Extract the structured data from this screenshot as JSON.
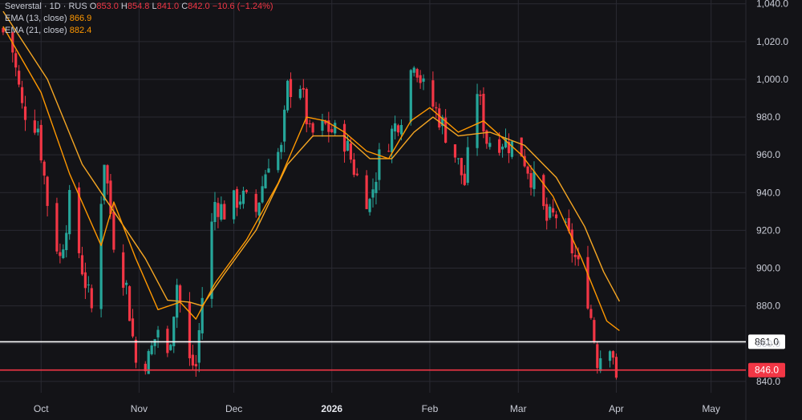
{
  "legend": {
    "symbol": "Severstal · 1D · RUS",
    "o_label": "O",
    "o_value": "853.0",
    "h_label": "H",
    "h_value": "854.8",
    "l_label": "L",
    "l_value": "841.0",
    "c_label": "C",
    "c_value": "842.0",
    "change": "−10.6 (−1.24%)",
    "ema1_label": "EMA (13, close)",
    "ema1_value": "866.9",
    "ema2_label": "EMA (21, close)",
    "ema2_value": "882.4"
  },
  "colors": {
    "up": "#26a69a",
    "down": "#f23645",
    "ema13": "#ff9800",
    "ema21": "#f5a623",
    "background": "#131317",
    "grid": "#2a2a32",
    "white_line": "#ffffff",
    "red_line": "#f23645"
  },
  "chart_data": {
    "type": "candlestick",
    "ylim": [
      834,
      1042
    ],
    "y_ticks": [
      "840.0",
      "860.0",
      "880.0",
      "900.0",
      "920.0",
      "940.0",
      "960.0",
      "980.0",
      "1,000.0",
      "1,020.0",
      "1,040.0"
    ],
    "y_tick_values": [
      840,
      860,
      880,
      900,
      920,
      940,
      960,
      980,
      1000,
      1020,
      1040
    ],
    "x_ticks": [
      {
        "label": "Oct",
        "date": "2025-10-01"
      },
      {
        "label": "Nov",
        "date": "2025-11-01"
      },
      {
        "label": "Dec",
        "date": "2025-12-01"
      },
      {
        "label": "2026",
        "date": "2026-01-01",
        "bold": true
      },
      {
        "label": "Feb",
        "date": "2026-02-01"
      },
      {
        "label": "Mar",
        "date": "2026-03-01"
      },
      {
        "label": "Apr",
        "date": "2026-04-01"
      },
      {
        "label": "May",
        "date": "2026-05-01"
      }
    ],
    "x_range": [
      "2025-09-18",
      "2026-05-12"
    ],
    "horizontal_lines": [
      {
        "value": 861.0,
        "label": "861.0",
        "color": "#ffffff"
      },
      {
        "value": 846.0,
        "label": "846.0",
        "color": "#f23645"
      }
    ],
    "close_path": [
      [
        "2025-09-19",
        1025
      ],
      [
        "2025-09-22",
        1015
      ],
      [
        "2025-09-25",
        985
      ],
      [
        "2025-09-30",
        975
      ],
      [
        "2025-10-03",
        935
      ],
      [
        "2025-10-07",
        905
      ],
      [
        "2025-10-10",
        935
      ],
      [
        "2025-10-14",
        900
      ],
      [
        "2025-10-17",
        878
      ],
      [
        "2025-10-21",
        958
      ],
      [
        "2025-10-24",
        915
      ],
      [
        "2025-10-28",
        890
      ],
      [
        "2025-10-31",
        850
      ],
      [
        "2025-11-04",
        852
      ],
      [
        "2025-11-07",
        868
      ],
      [
        "2025-11-10",
        852
      ],
      [
        "2025-11-13",
        892
      ],
      [
        "2025-11-17",
        850
      ],
      [
        "2025-11-19",
        848
      ],
      [
        "2025-11-21",
        885
      ],
      [
        "2025-11-25",
        935
      ],
      [
        "2025-11-28",
        930
      ],
      [
        "2025-12-03",
        938
      ],
      [
        "2025-12-08",
        930
      ],
      [
        "2025-12-12",
        958
      ],
      [
        "2025-12-16",
        962
      ],
      [
        "2025-12-18",
        995
      ],
      [
        "2025-12-22",
        998
      ],
      [
        "2025-12-25",
        970
      ],
      [
        "2025-12-30",
        975
      ],
      [
        "2026-01-05",
        968
      ],
      [
        "2026-01-09",
        948
      ],
      [
        "2026-01-13",
        935
      ],
      [
        "2026-01-16",
        958
      ],
      [
        "2026-01-20",
        972
      ],
      [
        "2026-01-23",
        982
      ],
      [
        "2026-01-27",
        1012
      ],
      [
        "2026-01-30",
        995
      ],
      [
        "2026-02-04",
        980
      ],
      [
        "2026-02-09",
        960
      ],
      [
        "2026-02-12",
        945
      ],
      [
        "2026-02-16",
        995
      ],
      [
        "2026-02-19",
        968
      ],
      [
        "2026-02-24",
        968
      ],
      [
        "2026-03-02",
        962
      ],
      [
        "2026-03-06",
        945
      ],
      [
        "2026-03-10",
        925
      ],
      [
        "2026-03-13",
        928
      ],
      [
        "2026-03-17",
        915
      ],
      [
        "2026-03-20",
        900
      ],
      [
        "2026-03-23",
        885
      ],
      [
        "2026-03-26",
        852
      ],
      [
        "2026-03-30",
        862
      ],
      [
        "2026-04-01",
        848
      ]
    ],
    "ema13_path": [
      [
        "2025-09-19",
        1028
      ],
      [
        "2025-10-01",
        993
      ],
      [
        "2025-10-10",
        950
      ],
      [
        "2025-10-20",
        912
      ],
      [
        "2025-10-24",
        935
      ],
      [
        "2025-10-31",
        905
      ],
      [
        "2025-11-07",
        878
      ],
      [
        "2025-11-14",
        882
      ],
      [
        "2025-11-19",
        873
      ],
      [
        "2025-11-25",
        892
      ],
      [
        "2025-12-05",
        915
      ],
      [
        "2025-12-15",
        945
      ],
      [
        "2025-12-24",
        980
      ],
      [
        "2025-12-30",
        978
      ],
      [
        "2026-01-05",
        972
      ],
      [
        "2026-01-12",
        962
      ],
      [
        "2026-01-19",
        958
      ],
      [
        "2026-01-26",
        978
      ],
      [
        "2026-02-01",
        985
      ],
      [
        "2026-02-10",
        972
      ],
      [
        "2026-02-18",
        978
      ],
      [
        "2026-03-02",
        960
      ],
      [
        "2026-03-12",
        938
      ],
      [
        "2026-03-21",
        905
      ],
      [
        "2026-03-29",
        872
      ],
      [
        "2026-04-02",
        866.9
      ]
    ],
    "ema21_path": [
      [
        "2025-09-19",
        1036
      ],
      [
        "2025-10-03",
        1000
      ],
      [
        "2025-10-14",
        955
      ],
      [
        "2025-10-24",
        930
      ],
      [
        "2025-11-03",
        905
      ],
      [
        "2025-11-10",
        883
      ],
      [
        "2025-11-17",
        882
      ],
      [
        "2025-11-21",
        880
      ],
      [
        "2025-11-28",
        897
      ],
      [
        "2025-12-08",
        920
      ],
      [
        "2025-12-18",
        955
      ],
      [
        "2025-12-26",
        970
      ],
      [
        "2026-01-05",
        970
      ],
      [
        "2026-01-13",
        958
      ],
      [
        "2026-01-20",
        958
      ],
      [
        "2026-01-27",
        972
      ],
      [
        "2026-02-02",
        980
      ],
      [
        "2026-02-10",
        970
      ],
      [
        "2026-02-20",
        972
      ],
      [
        "2026-03-03",
        965
      ],
      [
        "2026-03-13",
        948
      ],
      [
        "2026-03-22",
        922
      ],
      [
        "2026-03-28",
        898
      ],
      [
        "2026-04-02",
        882.4
      ]
    ]
  }
}
